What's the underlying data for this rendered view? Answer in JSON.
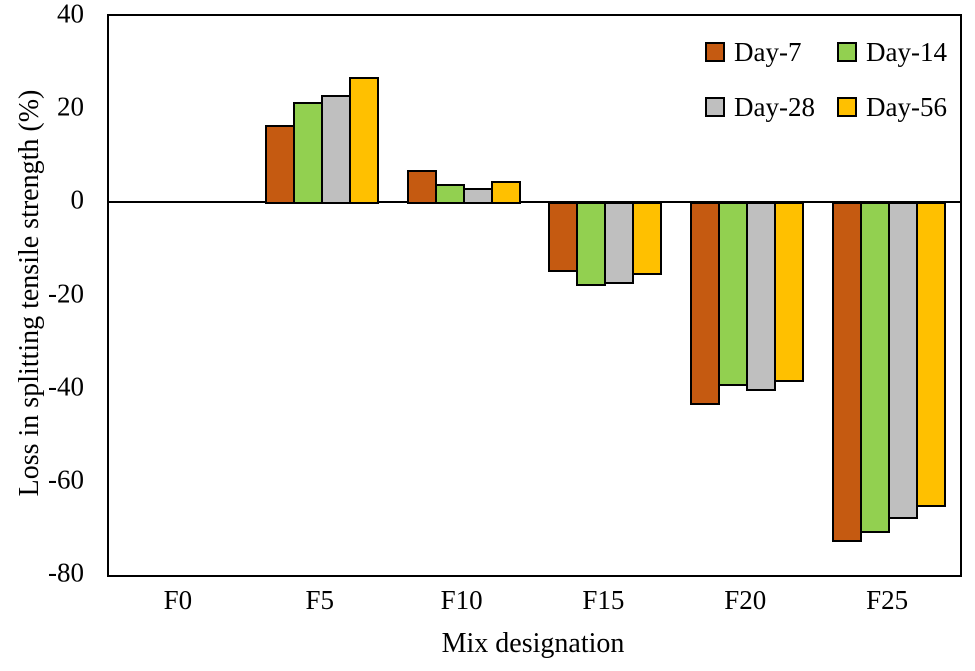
{
  "chart_data": {
    "type": "bar",
    "title": "",
    "xlabel": "Mix designation",
    "ylabel": "Loss in splitting tensile strength (%)",
    "categories": [
      "F0",
      "F5",
      "F10",
      "F15",
      "F20",
      "F25"
    ],
    "series": [
      {
        "name": "Day-7",
        "color": "#C55A11",
        "values": [
          0,
          16.5,
          7,
          -15,
          -43.5,
          -73
        ]
      },
      {
        "name": "Day-14",
        "color": "#92D050",
        "values": [
          0,
          21.5,
          4,
          -18,
          -39.5,
          -71
        ]
      },
      {
        "name": "Day-28",
        "color": "#BFBFBF",
        "values": [
          0,
          23,
          3,
          -17.5,
          -40.5,
          -68
        ]
      },
      {
        "name": "Day-56",
        "color": "#FFC000",
        "values": [
          0,
          27,
          4.5,
          -15.5,
          -38.5,
          -65.5
        ]
      }
    ],
    "ylim": [
      -80,
      40
    ],
    "yticks": [
      40,
      20,
      0,
      -20,
      -40,
      -60,
      -80
    ],
    "grid": false,
    "legend_position": "top-right-inside",
    "legend_rows": [
      [
        "Day-7",
        "Day-14"
      ],
      [
        "Day-28",
        "Day-56"
      ]
    ],
    "bar_border_color": "#000000",
    "axis_color": "#000000",
    "background_color": "#FFFFFF"
  }
}
